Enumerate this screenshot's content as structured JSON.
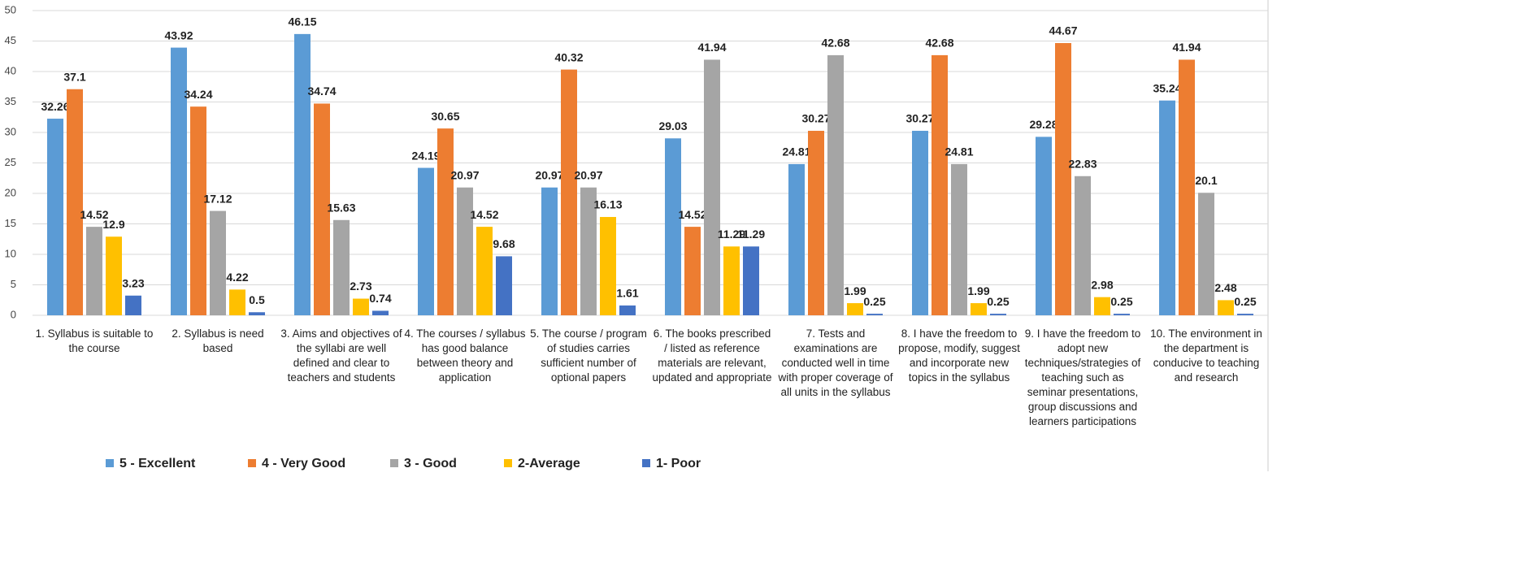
{
  "chart_data": {
    "type": "bar",
    "categories": [
      "1.  Syllabus is suitable to the course",
      "2.  Syllabus is need based",
      "3.  Aims and objectives of the syllabi are well defined and clear to teachers and students",
      "4.  The courses / syllabus has good balance between theory and application",
      "5.  The course / program of studies carries sufficient number of optional papers",
      "6.  The books prescribed / listed as reference materials are relevant, updated and appropriate",
      "7.  Tests and examinations are conducted well in time with proper coverage of all units in the syllabus",
      "8.  I have the freedom to propose, modify, suggest and incorporate new topics in the syllabus",
      "9.  I have the freedom to adopt new techniques/strategies of teaching such as seminar presentations, group discussions and learners participations",
      "10. The environment in the department is conducive to teaching and research"
    ],
    "series": [
      {
        "name": "5 - Excellent",
        "color": "#5b9bd5",
        "values": [
          32.26,
          43.92,
          46.15,
          24.19,
          20.97,
          29.03,
          24.81,
          30.27,
          29.28,
          35.24
        ]
      },
      {
        "name": "4 - Very Good",
        "color": "#ed7d31",
        "values": [
          37.1,
          34.24,
          34.74,
          30.65,
          40.32,
          14.52,
          30.27,
          42.68,
          44.67,
          41.94
        ]
      },
      {
        "name": "3 - Good",
        "color": "#a5a5a5",
        "values": [
          14.52,
          17.12,
          15.63,
          20.97,
          20.97,
          41.94,
          42.68,
          24.81,
          22.83,
          20.1
        ]
      },
      {
        "name": "2-Average",
        "color": "#ffc000",
        "values": [
          12.9,
          4.22,
          2.73,
          14.52,
          16.13,
          11.29,
          1.99,
          1.99,
          2.98,
          2.48
        ]
      },
      {
        "name": "1- Poor",
        "color": "#4472c4",
        "values": [
          3.23,
          0.5,
          0.74,
          9.68,
          1.61,
          11.29,
          0.25,
          0.25,
          0.25,
          0.25
        ]
      }
    ],
    "ylim": [
      0,
      50
    ],
    "yticks": [
      0,
      5,
      10,
      15,
      20,
      25,
      30,
      35,
      40,
      45,
      50
    ],
    "grid": true,
    "legend": "bottom"
  }
}
